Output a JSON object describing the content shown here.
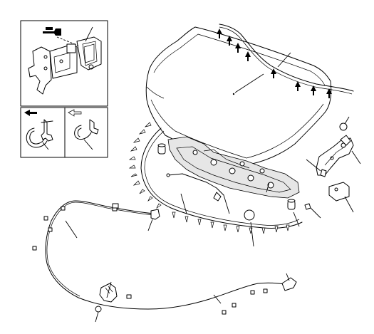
{
  "diagram": {
    "type": "exploded-parts-illustration",
    "subject": "hood-and-hood-release-assembly",
    "callout_labels": [],
    "legend": {
      "removal_direction_symbol": "solid-arrow",
      "installation_direction_symbol": "outline-arrow"
    },
    "icons": [
      "wrench-icon",
      "solid-arrow-icon",
      "outline-arrow-icon",
      "clip-icon"
    ]
  }
}
